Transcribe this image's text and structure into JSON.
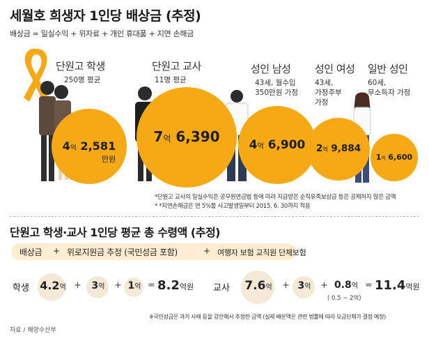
{
  "header": {
    "title": "세월호 희생자 1인당 배상금 (추정)",
    "subtitle": "배상금 = 일실수익 + 위자료 + 개인 휴대품 + 지연 손해금"
  },
  "chart_data": [
    {
      "type": "bubble",
      "title": "세월호 희생자 1인당 배상금 (추정)",
      "categories": [
        "단원고 학생",
        "단원고 교사",
        "성인 남성",
        "성인 여성",
        "일반 성인"
      ],
      "category_notes": [
        "250명 평균",
        "11명 평균",
        "43세, 월수입 350만원 가정",
        "43세, 가정주부 가정",
        "60세, 무소득자 가정"
      ],
      "values_manwon": [
        42581,
        76390,
        46900,
        29884,
        16600
      ],
      "value_labels": [
        {
          "eok": "4",
          "eok_unit": "억",
          "rest": "2,581",
          "rest_unit": "만원"
        },
        {
          "eok": "7",
          "eok_unit": "억",
          "rest": "6,390",
          "rest_unit": ""
        },
        {
          "eok": "4",
          "eok_unit": "억",
          "rest": "6,900",
          "rest_unit": ""
        },
        {
          "eok": "2",
          "eok_unit": "억",
          "rest": "9,884",
          "rest_unit": ""
        },
        {
          "eok": "1",
          "eok_unit": "억",
          "rest": "6,600",
          "rest_unit": ""
        }
      ]
    },
    {
      "type": "table",
      "title": "단원고 학생·교사 1인당 평균 총 수령액 (추정)",
      "components": [
        "배상금",
        "위로지원금 추정 (국민성금 포함)",
        "여행자 보험 교직원 단체보험"
      ],
      "rows": [
        {
          "label": "학생",
          "values_eok": [
            4.2,
            3,
            1
          ],
          "total_eok": 8.2
        },
        {
          "label": "교사",
          "values_eok": [
            7.6,
            3,
            0.8
          ],
          "total_eok": 11.4
        }
      ]
    }
  ],
  "notes": {
    "note1": "*단원고 교사의 일실수익은 공무원연금법 등에 따라 지급받은 순직유족보상금 등은 공제하지 않은 금액",
    "note2": "* *지연손해금은 연 5%를 사고발생일부터 2015. 6. 30까지 적용",
    "note3": "※국민성금은 과거 사례 등을 감안해서 추정한 금액 (실제 배분액은 관련 법률에 따라 모금단체가 결정 예정)"
  },
  "section2": {
    "pill": {
      "a": "배상금",
      "plus1": "+",
      "b": "위로지원금 추정 (국민성금 포함)",
      "plus2": "+",
      "c": "여행자 보험 교직원 단체보험"
    },
    "student": {
      "label": "학생",
      "v1": "4.2",
      "v2": "3",
      "v3": "1",
      "unit": "억",
      "plus": "+",
      "eq": "=",
      "total": "8.2",
      "total_unit": "억원"
    },
    "teacher": {
      "label": "교사",
      "v1": "7.6",
      "v2": "3",
      "v3": "0.8",
      "v3_range": "( 0.5 ~ 2억)",
      "unit": "억",
      "plus": "+",
      "eq": "=",
      "total": "11.4",
      "total_unit": "억원"
    }
  },
  "source": "자료 / 해양수산부",
  "colors": {
    "accent": "#f6a914",
    "bubble": "#f3e9d6",
    "pill": "#fdeed2"
  }
}
